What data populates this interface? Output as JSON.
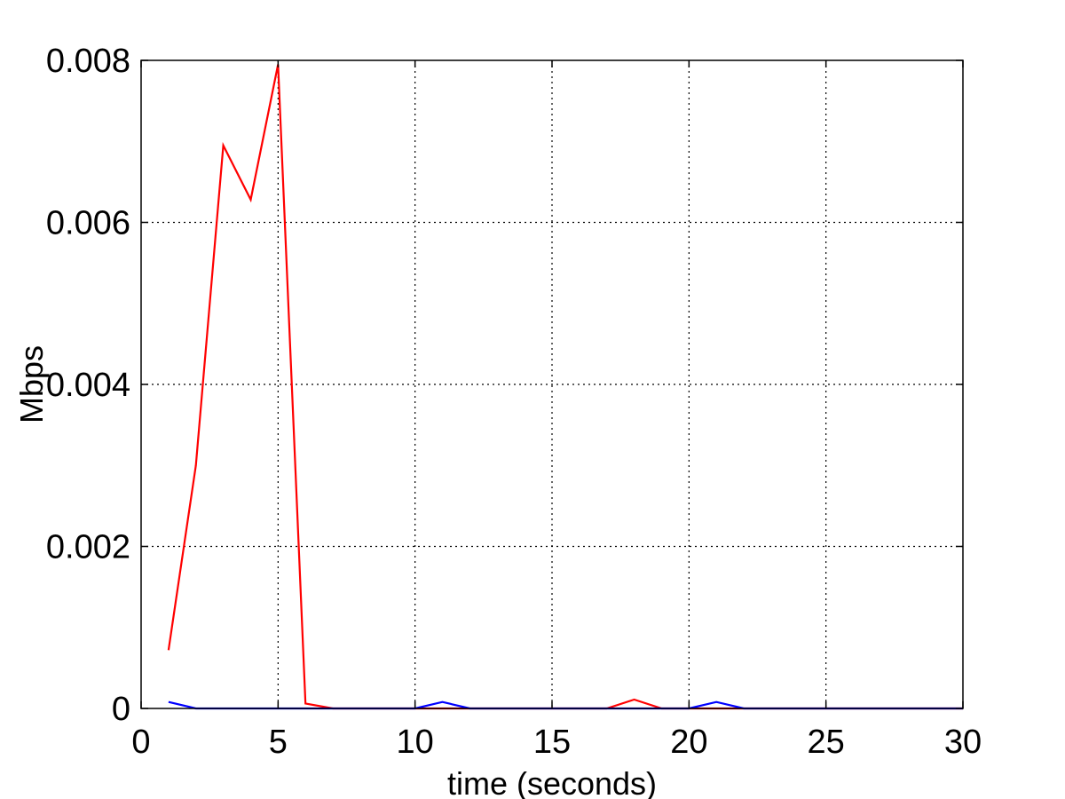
{
  "chart_data": {
    "type": "line",
    "title": "",
    "xlabel": "time (seconds)",
    "ylabel": "Mbps",
    "xlim": [
      0,
      30
    ],
    "ylim": [
      0,
      0.008
    ],
    "xticks": [
      0,
      5,
      10,
      15,
      20,
      25,
      30
    ],
    "xtick_labels": [
      "0",
      "5",
      "10",
      "15",
      "20",
      "25",
      "30"
    ],
    "yticks": [
      0,
      0.002,
      0.004,
      0.006,
      0.008
    ],
    "ytick_labels": [
      "0",
      "0.002",
      "0.004",
      "0.006",
      "0.008"
    ],
    "grid": true,
    "legend": "none",
    "series": [
      {
        "color": "#ff0000",
        "x": [
          1,
          2,
          3,
          4,
          5,
          6,
          7,
          8,
          9,
          10,
          11,
          12,
          13,
          14,
          15,
          16,
          17,
          18,
          19,
          20,
          21,
          22,
          23,
          24,
          25,
          26,
          27,
          28,
          29,
          30
        ],
        "values": [
          0.00072,
          0.003,
          0.00695,
          0.00628,
          0.00795,
          6e-05,
          0,
          0,
          0,
          0,
          0,
          0,
          0,
          0,
          0,
          0,
          0,
          0.00011,
          0,
          0,
          0,
          0,
          0,
          0,
          0,
          0,
          0,
          0,
          0,
          0
        ]
      },
      {
        "color": "#0000ff",
        "x": [
          1,
          2,
          3,
          4,
          5,
          6,
          7,
          8,
          9,
          10,
          11,
          12,
          13,
          14,
          15,
          16,
          17,
          18,
          19,
          20,
          21,
          22,
          23,
          24,
          25,
          26,
          27,
          28,
          29,
          30
        ],
        "values": [
          8e-05,
          0,
          0,
          0,
          0,
          0,
          0,
          0,
          0,
          0,
          8e-05,
          0,
          0,
          0,
          0,
          0,
          0,
          0,
          0,
          0,
          8e-05,
          0,
          0,
          0,
          0,
          0,
          0,
          0,
          0,
          0
        ]
      }
    ]
  }
}
